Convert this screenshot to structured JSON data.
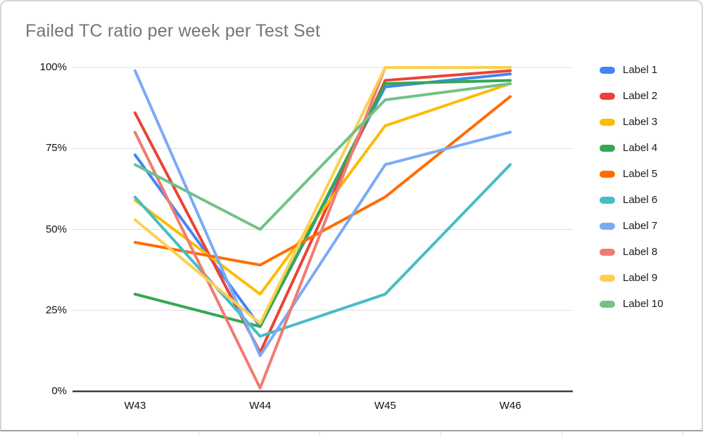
{
  "window": {
    "background": "#ffffff",
    "card_border_color": "#d5d5d5"
  },
  "chart_data": {
    "type": "line",
    "title": "Failed TC ratio per week per Test Set",
    "title_color": "#757575",
    "categories": [
      "W43",
      "W44",
      "W45",
      "W46"
    ],
    "series": [
      {
        "name": "Label 1",
        "color": "#4285F4",
        "values": [
          73,
          20,
          94,
          98
        ]
      },
      {
        "name": "Label 2",
        "color": "#EA4335",
        "values": [
          86,
          12,
          96,
          99
        ]
      },
      {
        "name": "Label 3",
        "color": "#FBBC04",
        "values": [
          59,
          30,
          82,
          95
        ]
      },
      {
        "name": "Label 4",
        "color": "#34A853",
        "values": [
          30,
          20,
          95,
          96
        ]
      },
      {
        "name": "Label 5",
        "color": "#FF6D01",
        "values": [
          46,
          39,
          60,
          91
        ]
      },
      {
        "name": "Label 6",
        "color": "#46BDC6",
        "values": [
          60,
          17,
          30,
          70
        ]
      },
      {
        "name": "Label 7",
        "color": "#7BAAF7",
        "values": [
          99,
          11,
          70,
          80
        ]
      },
      {
        "name": "Label 8",
        "color": "#F07B72",
        "values": [
          80,
          1,
          100,
          100
        ]
      },
      {
        "name": "Label 9",
        "color": "#FCD04F",
        "values": [
          53,
          21,
          100,
          100
        ]
      },
      {
        "name": "Label 10",
        "color": "#71C287",
        "values": [
          70,
          50,
          90,
          95
        ]
      }
    ],
    "xlabel": "",
    "ylabel": "",
    "ylim": [
      0,
      100
    ],
    "yticks": [
      0,
      25,
      50,
      75,
      100
    ],
    "ytick_labels": [
      "0%",
      "25%",
      "50%",
      "75%",
      "100%"
    ],
    "grid": true,
    "grid_color": "#dadce0",
    "axis_color": "#3c3c3c",
    "tick_label_color": "#111111",
    "legend_position": "right",
    "line_width": 4
  }
}
